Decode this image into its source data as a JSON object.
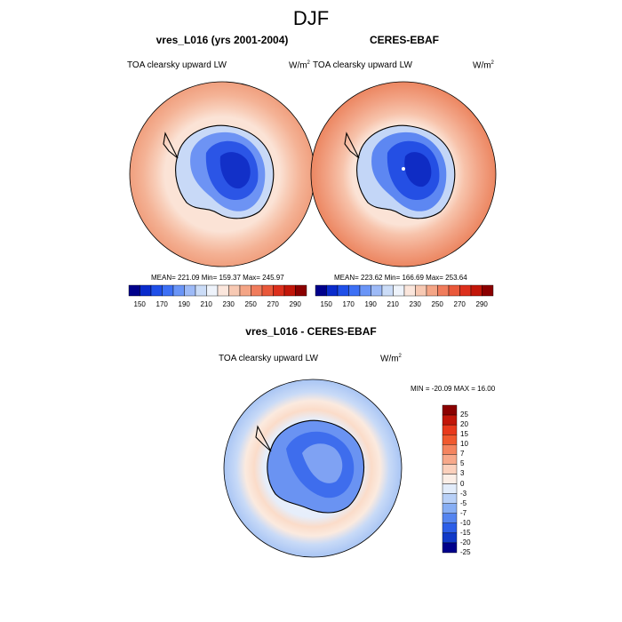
{
  "figure": {
    "season": "DJF",
    "panels": [
      {
        "title": "vres_L016 (yrs 2001-2004)",
        "left_label": "TOA clearsky upward LW",
        "units": "W/m",
        "stats": "MEAN= 221.09  Min= 159.37  Max= 245.97"
      },
      {
        "title": "CERES-EBAF",
        "left_label": "TOA clearsky upward LW",
        "units": "W/m",
        "stats": "MEAN= 223.62  Min= 166.69  Max= 253.64"
      }
    ],
    "diff_panel": {
      "title": "vres_L016 - CERES-EBAF",
      "left_label": "TOA clearsky upward LW",
      "units": "W/m",
      "stats": "MIN = -20.09  MAX =  16.00"
    },
    "units_superscript": "2"
  },
  "colorbar_horizontal": {
    "labels": [
      "150",
      "170",
      "190",
      "210",
      "230",
      "250",
      "270",
      "290"
    ],
    "colors": [
      "#00008b",
      "#0a2bcc",
      "#1f4fe8",
      "#3d70f5",
      "#6a95f7",
      "#9dbaf7",
      "#cbdcf7",
      "#eef3fb",
      "#fbe6dc",
      "#f7c9b3",
      "#f4a586",
      "#f07c5c",
      "#e9583a",
      "#dc2f1c",
      "#c21609",
      "#8b0000"
    ]
  },
  "colorbar_vertical": {
    "labels": [
      "25",
      "20",
      "15",
      "10",
      "7",
      "5",
      "3",
      "0",
      "-3",
      "-5",
      "-7",
      "-10",
      "-15",
      "-20",
      "-25"
    ],
    "colors": [
      "#8b0000",
      "#c21609",
      "#e8391c",
      "#f0592f",
      "#f4845f",
      "#f7a88a",
      "#fbd0bc",
      "#fbeee6",
      "#e2ecfa",
      "#b8d0f7",
      "#87aef4",
      "#5585f0",
      "#2c5ee8",
      "#1039c8",
      "#00008b"
    ]
  },
  "colors": {
    "ocean_warm": "#f3b59a",
    "ocean_pale": "#fbe3d6",
    "antarctic_deep": "#1438d6",
    "diff_ocean": "#b9d1f5",
    "diff_pos": "#fbd9c7"
  }
}
